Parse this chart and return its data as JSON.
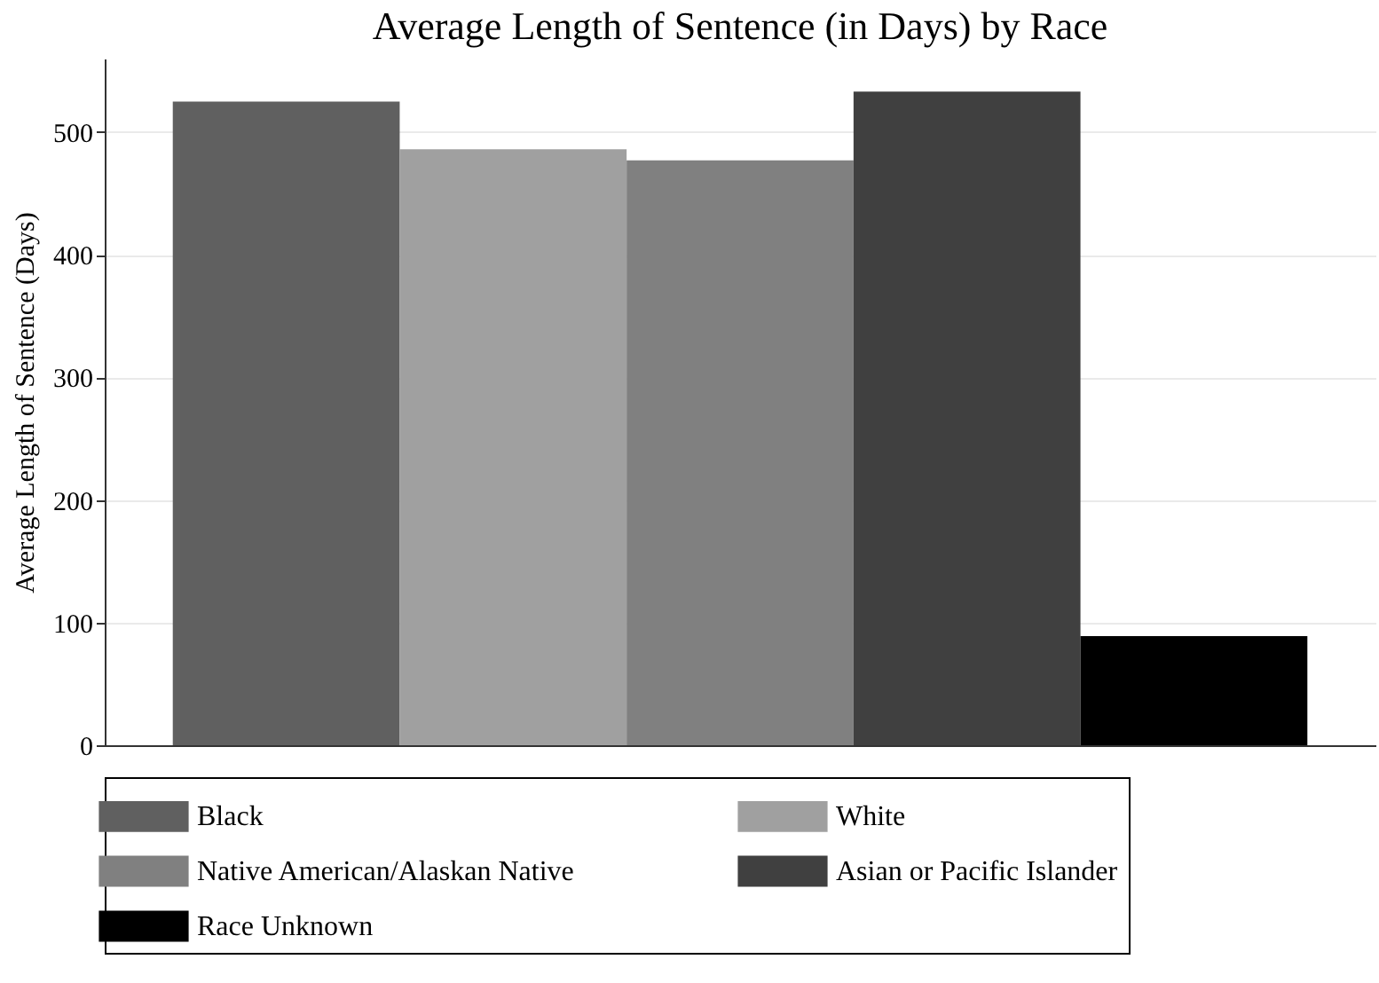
{
  "chart_data": {
    "type": "bar",
    "title": "Average Length of Sentence (in Days) by Race",
    "ylabel": "Average Length of Sentence (Days)",
    "categories": [
      null
    ],
    "series": [
      {
        "name": "Black",
        "color": "#606060",
        "values": [
          525
        ]
      },
      {
        "name": "White",
        "color": "#a0a0a0",
        "values": [
          486
        ]
      },
      {
        "name": "Native American/Alaskan Native",
        "color": "#808080",
        "values": [
          477
        ]
      },
      {
        "name": "Asian or Pacific Islander",
        "color": "#404040",
        "values": [
          533
        ]
      },
      {
        "name": "Race Unknown",
        "color": "#000000",
        "values": [
          89
        ]
      }
    ],
    "ylim": [
      0,
      560
    ],
    "yticks": [
      0,
      100,
      200,
      300,
      400,
      500
    ],
    "grid": "y",
    "legend": "bottom",
    "tick_labels": "y"
  }
}
